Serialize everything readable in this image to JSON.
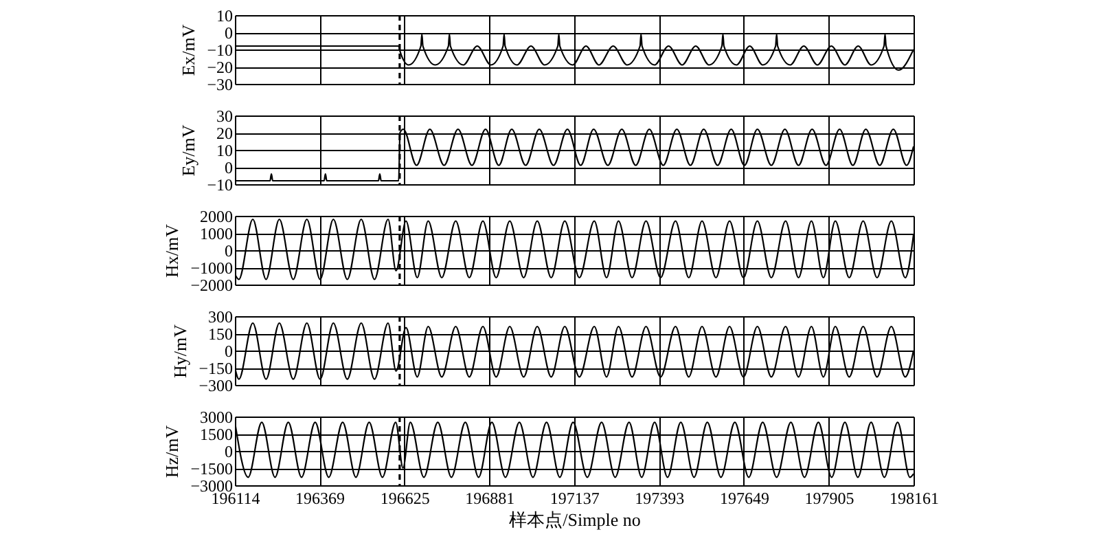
{
  "chart_data": [
    {
      "type": "line",
      "ylabel": "Ex/mV",
      "xlim": [
        196114,
        198161
      ],
      "xticks": [
        196114,
        196369,
        196625,
        196881,
        197137,
        197393,
        197649,
        197905,
        198161
      ],
      "ylim": [
        -30,
        10
      ],
      "yticks": [
        -30,
        -20,
        -10,
        0,
        10
      ],
      "grid": true,
      "tick_labels": "y",
      "ref_lines": [
        {
          "axis": "x",
          "value": 196611,
          "line_style": "dashed",
          "color": "#000000"
        }
      ],
      "series": [
        {
          "color": "#000000",
          "x": [
            196114,
            196608,
            196612,
            196638,
            196675,
            196678,
            196681,
            196718,
            196758,
            196761,
            196764,
            196803,
            196845,
            196886,
            196923,
            196926,
            196929,
            196965,
            197007,
            197048,
            197088,
            197091,
            197094,
            197133,
            197173,
            197212,
            197255,
            197297,
            197336,
            197339,
            197342,
            197380,
            197422,
            197463,
            197504,
            197544,
            197583,
            197586,
            197589,
            197627,
            197667,
            197706,
            197745,
            197748,
            197751,
            197789,
            197830,
            197871,
            197913,
            197954,
            197994,
            198033,
            198072,
            198075,
            198078,
            198116,
            198161
          ],
          "values": [
            -8,
            -8,
            -11,
            -19,
            -8,
            -1,
            -8,
            -19,
            -8,
            -1,
            -8,
            -19,
            -8,
            -19,
            -8,
            -1,
            -8,
            -19,
            -8,
            -19,
            -8,
            -1,
            -8,
            -19,
            -8,
            -19,
            -8,
            -19,
            -8,
            -1,
            -8,
            -19,
            -8,
            -19,
            -8,
            -19,
            -8,
            -1,
            -8,
            -19,
            -8,
            -19,
            -8,
            -1,
            -8,
            -19,
            -8,
            -19,
            -8,
            -19,
            -8,
            -19,
            -8,
            -1,
            -8,
            -22,
            -10
          ]
        }
      ]
    },
    {
      "type": "line",
      "ylabel": "Ey/mV",
      "xlim": [
        196114,
        198161
      ],
      "xticks": [
        196114,
        196369,
        196625,
        196881,
        197137,
        197393,
        197649,
        197905,
        198161
      ],
      "ylim": [
        -10,
        30
      ],
      "yticks": [
        -10,
        0,
        10,
        20,
        30
      ],
      "grid": true,
      "tick_labels": "y",
      "ref_lines": [
        {
          "axis": "x",
          "value": 196611,
          "line_style": "dashed",
          "color": "#000000"
        }
      ],
      "series": [
        {
          "color": "#000000",
          "x": [
            196114,
            196220,
            196224,
            196228,
            196383,
            196387,
            196391,
            196547,
            196551,
            196555,
            196608,
            196612,
            196622,
            196662,
            196702,
            196745,
            196787,
            196829,
            196870,
            196910,
            196949,
            196991,
            197032,
            197075,
            197117,
            197157,
            197196,
            197239,
            197281,
            197323,
            197364,
            197406,
            197447,
            197488,
            197528,
            197570,
            197611,
            197651,
            197690,
            197732,
            197773,
            197814,
            197855,
            197897,
            197938,
            197978,
            198017,
            198059,
            198100,
            198140,
            198161
          ],
          "values": [
            -8,
            -8,
            -4,
            -8,
            -8,
            -4,
            -8,
            -8,
            -4,
            -8,
            -8,
            20,
            22,
            1,
            22,
            1,
            22,
            1,
            22,
            1,
            22,
            1,
            22,
            1,
            22,
            1,
            22,
            1,
            22,
            1,
            22,
            1,
            22,
            1,
            22,
            1,
            22,
            1,
            22,
            1,
            22,
            1,
            22,
            1,
            22,
            1,
            22,
            1,
            22,
            1,
            12
          ]
        }
      ]
    },
    {
      "type": "line",
      "ylabel": "Hx/mV",
      "xlim": [
        196114,
        198161
      ],
      "xticks": [
        196114,
        196369,
        196625,
        196881,
        197137,
        197393,
        197649,
        197905,
        198161
      ],
      "ylim": [
        -2000,
        2000
      ],
      "yticks": [
        -2000,
        -1000,
        0,
        1000,
        2000
      ],
      "grid": true,
      "tick_labels": "y",
      "ref_lines": [
        {
          "axis": "x",
          "value": 196611,
          "line_style": "dashed",
          "color": "#000000"
        }
      ],
      "series": [
        {
          "color": "#000000",
          "x": [
            196114,
            196126,
            196168,
            196208,
            196248,
            196290,
            196331,
            196371,
            196411,
            196453,
            196495,
            196535,
            196576,
            196600,
            196630,
            196664,
            196697,
            196738,
            196780,
            196821,
            196862,
            196902,
            196943,
            196985,
            197026,
            197068,
            197109,
            197153,
            197198,
            197235,
            197271,
            197312,
            197354,
            197398,
            197443,
            197483,
            197523,
            197565,
            197606,
            197648,
            197690,
            197732,
            197775,
            197814,
            197853,
            197889,
            197925,
            197967,
            198009,
            198051,
            198094,
            198136,
            198161
          ],
          "values": [
            -1400,
            -1700,
            1800,
            -1700,
            1800,
            -1700,
            1800,
            -1700,
            1800,
            -1700,
            1800,
            -1700,
            1800,
            -1200,
            1700,
            -1600,
            1700,
            -1600,
            1700,
            -1600,
            1700,
            -1600,
            1700,
            -1600,
            1700,
            -1600,
            1700,
            -1600,
            1700,
            -1600,
            1700,
            -1600,
            1700,
            -1600,
            1700,
            -1600,
            1700,
            -1600,
            1700,
            -1600,
            1700,
            -1600,
            1700,
            -1600,
            1700,
            -1600,
            1700,
            -1600,
            1700,
            -1600,
            1700,
            -1600,
            900
          ]
        }
      ]
    },
    {
      "type": "line",
      "ylabel": "Hy/mV",
      "xlim": [
        196114,
        198161
      ],
      "xticks": [
        196114,
        196369,
        196625,
        196881,
        197137,
        197393,
        197649,
        197905,
        198161
      ],
      "ylim": [
        -300,
        300
      ],
      "yticks": [
        -300,
        -150,
        0,
        150,
        300
      ],
      "grid": true,
      "tick_labels": "y",
      "ref_lines": [
        {
          "axis": "x",
          "value": 196611,
          "line_style": "dashed",
          "color": "#000000"
        }
      ],
      "series": [
        {
          "color": "#000000",
          "x": [
            196114,
            196126,
            196168,
            196208,
            196248,
            196290,
            196331,
            196371,
            196411,
            196453,
            196495,
            196535,
            196576,
            196600,
            196630,
            196664,
            196697,
            196738,
            196780,
            196821,
            196862,
            196902,
            196943,
            196985,
            197026,
            197068,
            197109,
            197153,
            197198,
            197235,
            197271,
            197312,
            197354,
            197398,
            197443,
            197483,
            197523,
            197565,
            197606,
            197648,
            197690,
            197732,
            197775,
            197814,
            197853,
            197889,
            197925,
            197967,
            198009,
            198051,
            198094,
            198136,
            198161
          ],
          "values": [
            -150,
            -250,
            240,
            -250,
            240,
            -250,
            240,
            -250,
            240,
            -250,
            240,
            -250,
            240,
            -180,
            200,
            -230,
            210,
            -230,
            210,
            -230,
            210,
            -230,
            210,
            -230,
            210,
            -230,
            210,
            -230,
            210,
            -230,
            210,
            -230,
            210,
            -230,
            210,
            -230,
            210,
            -230,
            210,
            -230,
            210,
            -230,
            210,
            -230,
            210,
            -230,
            210,
            -230,
            210,
            -230,
            210,
            -230,
            0
          ]
        }
      ]
    },
    {
      "type": "line",
      "ylabel": "Hz/mV",
      "xlabel": "样本点/Simple no",
      "xlim": [
        196114,
        198161
      ],
      "xticks": [
        196114,
        196369,
        196625,
        196881,
        197137,
        197393,
        197649,
        197905,
        198161
      ],
      "ylim": [
        -3000,
        3000
      ],
      "yticks": [
        -3000,
        -1500,
        0,
        1500,
        3000
      ],
      "grid": true,
      "ref_lines": [
        {
          "axis": "x",
          "value": 196611,
          "line_style": "dashed",
          "color": "#000000"
        }
      ],
      "series": [
        {
          "color": "#000000",
          "x": [
            196114,
            196154,
            196195,
            196235,
            196275,
            196315,
            196356,
            196397,
            196439,
            196479,
            196519,
            196559,
            196599,
            196621,
            196643,
            196684,
            196726,
            196767,
            196809,
            196849,
            196889,
            196930,
            196972,
            197013,
            197054,
            197094,
            197134,
            197177,
            197220,
            197261,
            197303,
            197341,
            197380,
            197419,
            197459,
            197499,
            197539,
            197580,
            197622,
            197664,
            197706,
            197748,
            197791,
            197832,
            197874,
            197914,
            197954,
            197993,
            198033,
            198073,
            198113,
            198150,
            198161
          ],
          "values": [
            2500,
            -2300,
            2500,
            -2300,
            2500,
            -2300,
            2500,
            -2300,
            2500,
            -2300,
            2500,
            -2300,
            2500,
            -1500,
            2500,
            -2300,
            2500,
            -2300,
            2500,
            -2300,
            2500,
            -2300,
            2500,
            -2300,
            2500,
            -2300,
            2500,
            -2300,
            2500,
            -2300,
            2500,
            -2300,
            2500,
            -2300,
            2500,
            -2300,
            2500,
            -2300,
            2500,
            -2300,
            2500,
            -2300,
            2500,
            -2300,
            2500,
            -2300,
            2500,
            -2300,
            2500,
            -2300,
            2500,
            -2300,
            -2000
          ]
        }
      ]
    }
  ]
}
